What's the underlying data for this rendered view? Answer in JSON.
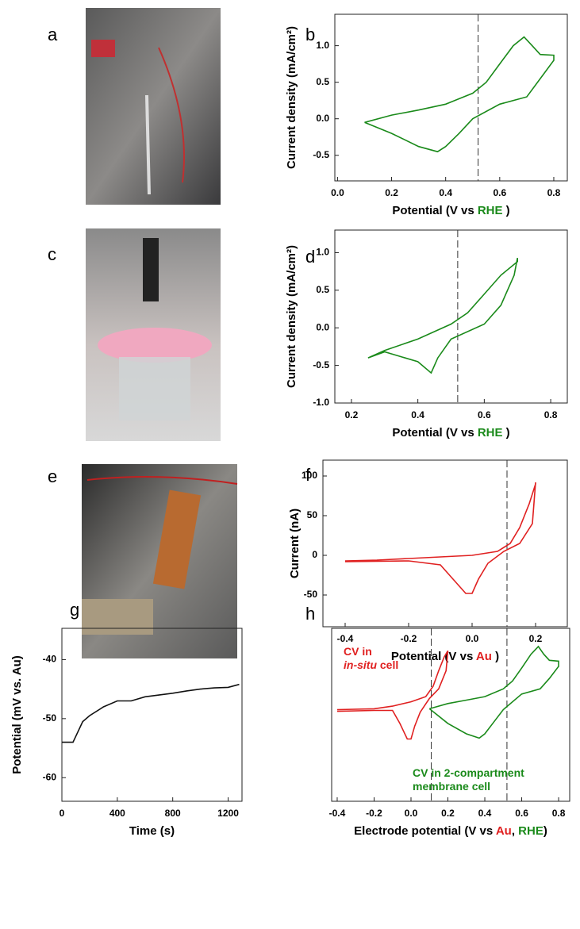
{
  "photos": [
    {
      "label": "a"
    },
    {
      "label": "c"
    },
    {
      "label": "e"
    }
  ],
  "chart_data": [
    {
      "type": "line",
      "panel": "b",
      "xlim": [
        -0.01,
        0.85
      ],
      "ylim": [
        -0.85,
        1.43
      ],
      "xticks": [
        {
          "value": 0,
          "label": "0.0"
        },
        0.2,
        0.4,
        0.6,
        0.8
      ],
      "yticks": [
        -0.5,
        {
          "value": 0,
          "label": "0.0"
        },
        0.5,
        {
          "value": 1,
          "label": "1.0"
        }
      ],
      "ylabel": "Current density (mA/cm²)",
      "xlabel": [
        {
          "text": "Potential (V vs ",
          "color": "#000000"
        },
        {
          "text": "RHE",
          "color": "#1a8a1a"
        },
        {
          "text": " )",
          "color": "#000000"
        }
      ],
      "vlines": [
        0.52
      ],
      "series": [
        {
          "color": "#1a8a1a",
          "x": [
            0.1,
            0.2,
            0.3,
            0.4,
            0.5,
            0.55,
            0.6,
            0.65,
            0.69,
            0.72,
            0.75,
            0.8,
            0.8,
            0.75,
            0.7,
            0.6,
            0.5,
            0.45,
            0.4,
            0.37,
            0.3,
            0.2,
            0.1
          ],
          "values": [
            -0.05,
            0.05,
            0.12,
            0.2,
            0.35,
            0.5,
            0.75,
            1.0,
            1.12,
            1.0,
            0.88,
            0.87,
            0.8,
            0.55,
            0.3,
            0.2,
            0.0,
            -0.2,
            -0.38,
            -0.45,
            -0.38,
            -0.2,
            -0.05
          ]
        }
      ]
    },
    {
      "type": "line",
      "panel": "d",
      "xlim": [
        0.15,
        0.85
      ],
      "ylim": [
        -1.0,
        1.3
      ],
      "xticks": [
        0.2,
        0.4,
        0.6,
        0.8
      ],
      "yticks": [
        {
          "value": -1,
          "label": "-1.0"
        },
        -0.5,
        {
          "value": 0,
          "label": "0.0"
        },
        0.5,
        {
          "value": 1,
          "label": "1.0"
        }
      ],
      "ylabel": "Current density (mA/cm²)",
      "xlabel": [
        {
          "text": "Potential (V vs ",
          "color": "#000000"
        },
        {
          "text": "RHE",
          "color": "#1a8a1a"
        },
        {
          "text": " )",
          "color": "#000000"
        }
      ],
      "vlines": [
        0.52
      ],
      "series": [
        {
          "color": "#1a8a1a",
          "x": [
            0.25,
            0.3,
            0.4,
            0.5,
            0.55,
            0.6,
            0.65,
            0.7,
            0.7,
            0.69,
            0.65,
            0.6,
            0.5,
            0.46,
            0.44,
            0.4,
            0.3,
            0.25
          ],
          "values": [
            -0.4,
            -0.3,
            -0.15,
            0.05,
            0.2,
            0.45,
            0.7,
            0.88,
            0.93,
            0.7,
            0.3,
            0.05,
            -0.15,
            -0.4,
            -0.6,
            -0.45,
            -0.32,
            -0.4
          ]
        }
      ]
    },
    {
      "type": "line",
      "panel": "f",
      "xlim": [
        -0.47,
        0.3
      ],
      "ylim": [
        -90,
        120
      ],
      "xticks": [
        -0.4,
        -0.2,
        {
          "value": 0,
          "label": "0.0"
        },
        0.2
      ],
      "yticks": [
        -50,
        0,
        50,
        100
      ],
      "ylabel": "Current (nA)",
      "xlabel": [
        {
          "text": "Potential (V vs ",
          "color": "#000000"
        },
        {
          "text": "Au",
          "color": "#e02020"
        },
        {
          "text": " )",
          "color": "#000000"
        }
      ],
      "vlines": [
        0.11
      ],
      "series": [
        {
          "color": "#e02020",
          "x": [
            -0.4,
            -0.3,
            -0.2,
            -0.1,
            0.0,
            0.08,
            0.12,
            0.15,
            0.18,
            0.2,
            0.2,
            0.19,
            0.15,
            0.1,
            0.05,
            0.02,
            0.0,
            -0.02,
            -0.06,
            -0.1,
            -0.2,
            -0.4
          ],
          "values": [
            -7,
            -6,
            -4,
            -2,
            0,
            5,
            15,
            35,
            65,
            90,
            92,
            40,
            15,
            5,
            -10,
            -30,
            -48,
            -48,
            -30,
            -12,
            -7,
            -8
          ]
        }
      ]
    },
    {
      "type": "line",
      "panel": "g",
      "xlim": [
        0,
        1300
      ],
      "ylim": [
        -64,
        -34.7
      ],
      "xticks": [
        0,
        400,
        800,
        1200
      ],
      "yticks": [
        -60,
        -50,
        -40
      ],
      "ylabel": "Potential (mV vs. Au)",
      "xlabel": [
        {
          "text": "Time (s)",
          "color": "#000000"
        }
      ],
      "vlines": [],
      "series": [
        {
          "color": "#111111",
          "x": [
            0,
            80,
            100,
            150,
            200,
            300,
            400,
            500,
            600,
            700,
            800,
            900,
            1000,
            1100,
            1200,
            1280
          ],
          "values": [
            -54,
            -54,
            -53,
            -50.5,
            -49.5,
            -48,
            -47,
            -47,
            -46.3,
            -46,
            -45.7,
            -45.3,
            -45,
            -44.8,
            -44.7,
            -44.2
          ]
        }
      ]
    },
    {
      "type": "line",
      "panel": "h",
      "xlim": [
        -0.43,
        0.86
      ],
      "ylim": [
        -1,
        1
      ],
      "xticks": [
        -0.4,
        -0.2,
        {
          "value": 0,
          "label": "0.0"
        },
        0.2,
        0.4,
        0.6,
        0.8
      ],
      "yticks": [],
      "xlabel": [
        {
          "text": "Electrode potential (V vs ",
          "color": "#000000"
        },
        {
          "text": "Au",
          "color": "#e02020"
        },
        {
          "text": ", ",
          "color": "#000000"
        },
        {
          "text": "RHE",
          "color": "#1a8a1a"
        },
        {
          "text": ")",
          "color": "#000000"
        }
      ],
      "vlines": [
        0.11,
        0.52
      ],
      "annotations": [
        {
          "color": "#e02020",
          "lines": [
            [
              {
                "text": "CV in"
              }
            ],
            [
              {
                "text": "in-situ",
                "italic": true
              },
              {
                "text": " cell"
              }
            ]
          ]
        },
        {
          "color": "#1a8a1a",
          "lines": [
            [
              {
                "text": "CV in 2-compartment"
              }
            ],
            [
              {
                "text": "membrane cell"
              }
            ]
          ]
        }
      ],
      "series": [
        {
          "color": "#e02020",
          "x": [
            -0.4,
            -0.2,
            -0.1,
            0.0,
            0.08,
            0.12,
            0.15,
            0.18,
            0.2,
            0.19,
            0.15,
            0.1,
            0.05,
            0.02,
            0.0,
            -0.02,
            -0.06,
            -0.1,
            -0.2,
            -0.4
          ],
          "values": [
            0.06,
            0.07,
            0.1,
            0.15,
            0.21,
            0.33,
            0.51,
            0.67,
            0.74,
            0.51,
            0.3,
            0.19,
            0.03,
            -0.13,
            -0.28,
            -0.28,
            -0.1,
            0.05,
            0.05,
            0.04
          ]
        },
        {
          "color": "#1a8a1a",
          "x": [
            0.1,
            0.2,
            0.3,
            0.4,
            0.5,
            0.55,
            0.6,
            0.65,
            0.69,
            0.72,
            0.75,
            0.8,
            0.8,
            0.75,
            0.7,
            0.6,
            0.5,
            0.45,
            0.4,
            0.37,
            0.3,
            0.2,
            0.1
          ],
          "values": [
            0.07,
            0.13,
            0.17,
            0.21,
            0.3,
            0.39,
            0.54,
            0.7,
            0.79,
            0.7,
            0.63,
            0.62,
            0.56,
            0.42,
            0.3,
            0.24,
            0.06,
            -0.08,
            -0.22,
            -0.27,
            -0.22,
            -0.1,
            0.07
          ]
        }
      ]
    }
  ]
}
